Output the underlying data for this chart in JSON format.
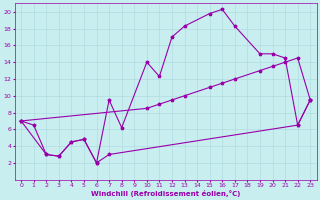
{
  "background_color": "#c8eef0",
  "grid_color": "#b0dce0",
  "line_color": "#9900aa",
  "xlim": [
    -0.5,
    23.5
  ],
  "ylim": [
    0,
    21
  ],
  "xlabel": "Windchill (Refroidissement éolien,°C)",
  "xticks": [
    0,
    1,
    2,
    3,
    4,
    5,
    6,
    7,
    8,
    9,
    10,
    11,
    12,
    13,
    14,
    15,
    16,
    17,
    18,
    19,
    20,
    21,
    22,
    23
  ],
  "yticks": [
    2,
    4,
    6,
    8,
    10,
    12,
    14,
    16,
    18,
    20
  ],
  "upper_x": [
    0,
    1,
    2,
    3,
    4,
    5,
    6,
    7,
    8,
    10,
    11,
    12,
    13,
    15,
    16,
    17,
    19,
    20,
    21,
    22,
    23
  ],
  "upper_y": [
    7.0,
    6.5,
    3.0,
    2.8,
    4.5,
    4.8,
    2.0,
    9.5,
    6.2,
    14.0,
    12.3,
    17.0,
    18.3,
    19.8,
    20.3,
    18.3,
    15.0,
    15.0,
    14.5,
    6.5,
    9.5
  ],
  "lower_x": [
    0,
    2,
    3,
    4,
    5,
    6,
    7,
    22,
    23
  ],
  "lower_y": [
    7.0,
    3.0,
    2.8,
    4.5,
    4.8,
    2.0,
    3.0,
    6.5,
    9.5
  ],
  "diag_x": [
    0,
    10,
    11,
    12,
    13,
    15,
    16,
    17,
    19,
    20,
    21,
    22,
    23
  ],
  "diag_y": [
    7.0,
    8.5,
    9.0,
    9.5,
    10.0,
    11.0,
    11.5,
    12.0,
    13.0,
    13.5,
    14.0,
    14.5,
    9.5
  ]
}
